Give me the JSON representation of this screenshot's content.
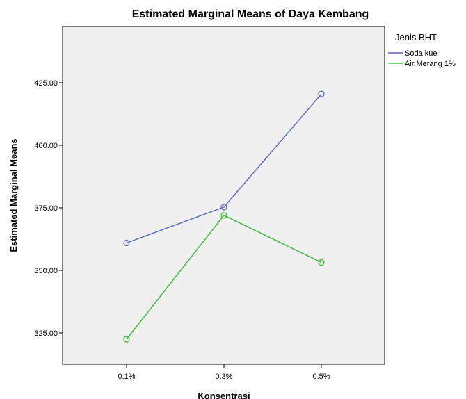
{
  "chart_data": {
    "type": "line",
    "title": "Estimated Marginal Means of Daya Kembang",
    "xlabel": "Konsentrasi",
    "ylabel": "Estimated Marginal Means",
    "categories": [
      "0.1%",
      "0.3%",
      "0.5%"
    ],
    "ylim": [
      312.5,
      447.5
    ],
    "yticks": [
      325,
      350,
      375,
      400,
      425
    ],
    "ytick_labels": [
      "325.00",
      "350.00",
      "375.00",
      "400.00",
      "425.00"
    ],
    "grid": false,
    "legend": {
      "title": "Jenis BHT",
      "placement": "right"
    },
    "series": [
      {
        "name": "Soda kue",
        "color": "#5b6dbf",
        "values": [
          361.0,
          375.3,
          420.5
        ]
      },
      {
        "name": "Air Merang 1%",
        "color": "#3dbb3d",
        "values": [
          322.5,
          372.0,
          353.2
        ]
      }
    ]
  }
}
